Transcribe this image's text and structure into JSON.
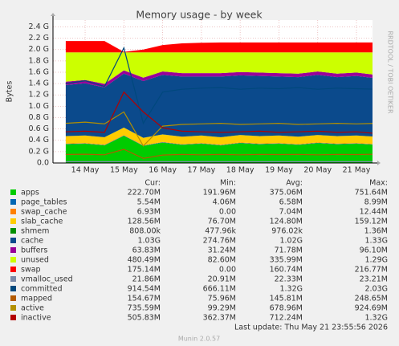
{
  "chart_data": {
    "type": "area",
    "title": "Memory usage - by week",
    "ylabel": "Bytes",
    "side_label": "RRDTOOL / TOBI OETIKER",
    "footer": "Last update: Thu May 21 23:55:56 2026",
    "version": "Munin 2.0.57",
    "stat_headers": [
      "Cur:",
      "Min:",
      "Avg:",
      "Max:"
    ],
    "categories": [
      null,
      "14 May",
      null,
      "15 May",
      null,
      "16 May",
      null,
      "17 May",
      null,
      "18 May",
      null,
      "19 May",
      null,
      "20 May",
      null,
      "21 May",
      null
    ],
    "ylim": [
      0,
      2520000000
    ],
    "yticks": [
      {
        "value": 0,
        "label": "0.0"
      },
      {
        "value": 200000000,
        "label": "0.2 G"
      },
      {
        "value": 400000000,
        "label": "0.4 G"
      },
      {
        "value": 600000000,
        "label": "0.6 G"
      },
      {
        "value": 800000000,
        "label": "0.8 G"
      },
      {
        "value": 1000000000,
        "label": "1.0 G"
      },
      {
        "value": 1200000000,
        "label": "1.2 G"
      },
      {
        "value": 1400000000,
        "label": "1.4 G"
      },
      {
        "value": 1600000000,
        "label": "1.6 G"
      },
      {
        "value": 1800000000,
        "label": "1.8 G"
      },
      {
        "value": 2000000000,
        "label": "2.0 G"
      },
      {
        "value": 2200000000,
        "label": "2.2 G"
      },
      {
        "value": 2400000000,
        "label": "2.4 G"
      }
    ],
    "grid": true,
    "series": [
      {
        "name": "apps",
        "style": "area",
        "color": "#00cc00",
        "stats": [
          "222.70M",
          "191.96M",
          "375.06M",
          "751.64M"
        ],
        "values": [
          330000000,
          340000000,
          310000000,
          480000000,
          300000000,
          360000000,
          320000000,
          340000000,
          310000000,
          350000000,
          330000000,
          340000000,
          320000000,
          350000000,
          330000000,
          340000000,
          320000000
        ]
      },
      {
        "name": "page_tables",
        "style": "area",
        "color": "#0066b3",
        "stats": [
          "5.54M",
          "4.06M",
          "6.58M",
          "8.99M"
        ],
        "values": [
          6000000,
          6000000,
          6000000,
          6000000,
          6000000,
          6000000,
          6000000,
          6000000,
          6000000,
          6000000,
          6000000,
          6000000,
          6000000,
          6000000,
          6000000,
          6000000,
          6000000
        ]
      },
      {
        "name": "swap_cache",
        "style": "area",
        "color": "#ff8000",
        "stats": [
          "6.93M",
          "0.00",
          "7.04M",
          "12.44M"
        ],
        "values": [
          7000000,
          7000000,
          7000000,
          7000000,
          7000000,
          7000000,
          7000000,
          7000000,
          7000000,
          7000000,
          7000000,
          7000000,
          7000000,
          7000000,
          7000000,
          7000000,
          7000000
        ]
      },
      {
        "name": "slab_cache",
        "style": "area",
        "color": "#ffcc00",
        "stats": [
          "128.56M",
          "76.70M",
          "124.80M",
          "159.12M"
        ],
        "values": [
          130000000,
          130000000,
          130000000,
          130000000,
          130000000,
          130000000,
          130000000,
          130000000,
          130000000,
          130000000,
          130000000,
          130000000,
          130000000,
          130000000,
          130000000,
          130000000,
          130000000
        ]
      },
      {
        "name": "shmem",
        "style": "area",
        "color": "#008f00",
        "stats": [
          "808.00k",
          "477.96k",
          "976.02k",
          "1.36M"
        ],
        "values": [
          1000000,
          1000000,
          1000000,
          1000000,
          1000000,
          1000000,
          1000000,
          1000000,
          1000000,
          1000000,
          1000000,
          1000000,
          1000000,
          1000000,
          1000000,
          1000000,
          1000000
        ]
      },
      {
        "name": "cache",
        "style": "area",
        "color": "#0b4a8c",
        "stats": [
          "1.03G",
          "274.76M",
          "1.02G",
          "1.33G"
        ],
        "values": [
          900000000,
          920000000,
          880000000,
          950000000,
          1000000000,
          1050000000,
          1060000000,
          1040000000,
          1070000000,
          1050000000,
          1060000000,
          1040000000,
          1050000000,
          1060000000,
          1040000000,
          1050000000,
          1030000000
        ]
      },
      {
        "name": "buffers",
        "style": "area",
        "color": "#990099",
        "stats": [
          "63.83M",
          "31.24M",
          "71.78M",
          "96.10M"
        ],
        "values": [
          60000000,
          60000000,
          60000000,
          60000000,
          60000000,
          60000000,
          60000000,
          60000000,
          60000000,
          60000000,
          60000000,
          60000000,
          60000000,
          60000000,
          60000000,
          60000000,
          60000000
        ]
      },
      {
        "name": "unused",
        "style": "area",
        "color": "#ccff00",
        "stats": [
          "480.49M",
          "82.60M",
          "335.99M",
          "1.29G"
        ],
        "values": [
          516000000,
          486000000,
          556000000,
          316000000,
          446000000,
          336000000,
          366000000,
          366000000,
          366000000,
          346000000,
          356000000,
          366000000,
          376000000,
          336000000,
          376000000,
          356000000,
          396000000
        ]
      },
      {
        "name": "swap",
        "style": "area",
        "color": "#ff0000",
        "stats": [
          "175.14M",
          "0.00",
          "160.74M",
          "216.77M"
        ],
        "values": [
          200000000,
          200000000,
          200000000,
          10000000,
          50000000,
          130000000,
          160000000,
          170000000,
          175000000,
          175000000,
          175000000,
          175000000,
          175000000,
          175000000,
          175000000,
          175000000,
          175000000
        ]
      },
      {
        "name": "vmalloc_used",
        "style": "line",
        "color": "#7a8aa8",
        "stats": [
          "21.86M",
          "20.91M",
          "22.33M",
          "23.21M"
        ],
        "values": [
          22000000,
          22000000,
          22000000,
          22000000,
          22000000,
          22000000,
          22000000,
          22000000,
          22000000,
          22000000,
          22000000,
          22000000,
          22000000,
          22000000,
          22000000,
          22000000,
          22000000
        ]
      },
      {
        "name": "committed",
        "style": "line",
        "color": "#00487d",
        "stats": [
          "914.54M",
          "666.11M",
          "1.32G",
          "2.03G"
        ],
        "values": [
          1400000000,
          1450000000,
          1350000000,
          2030000000,
          700000000,
          1250000000,
          1300000000,
          1320000000,
          1330000000,
          1300000000,
          1320000000,
          1310000000,
          1330000000,
          1300000000,
          1320000000,
          1310000000,
          1300000000
        ]
      },
      {
        "name": "mapped",
        "style": "line",
        "color": "#b35a00",
        "stats": [
          "154.67M",
          "75.96M",
          "145.81M",
          "248.65M"
        ],
        "values": [
          150000000,
          155000000,
          145000000,
          240000000,
          80000000,
          140000000,
          150000000,
          145000000,
          150000000,
          145000000,
          150000000,
          148000000,
          150000000,
          145000000,
          150000000,
          148000000,
          155000000
        ]
      },
      {
        "name": "active",
        "style": "line",
        "color": "#b38f00",
        "stats": [
          "735.59M",
          "99.29M",
          "678.96M",
          "924.69M"
        ],
        "values": [
          700000000,
          720000000,
          690000000,
          900000000,
          300000000,
          650000000,
          680000000,
          690000000,
          700000000,
          680000000,
          690000000,
          700000000,
          680000000,
          690000000,
          700000000,
          690000000,
          700000000
        ]
      },
      {
        "name": "inactive",
        "style": "line",
        "color": "#b30000",
        "stats": [
          "505.83M",
          "362.37M",
          "712.24M",
          "1.32G"
        ],
        "values": [
          550000000,
          560000000,
          540000000,
          1250000000,
          900000000,
          620000000,
          560000000,
          550000000,
          540000000,
          550000000,
          560000000,
          540000000,
          550000000,
          560000000,
          540000000,
          550000000,
          520000000
        ]
      }
    ]
  }
}
